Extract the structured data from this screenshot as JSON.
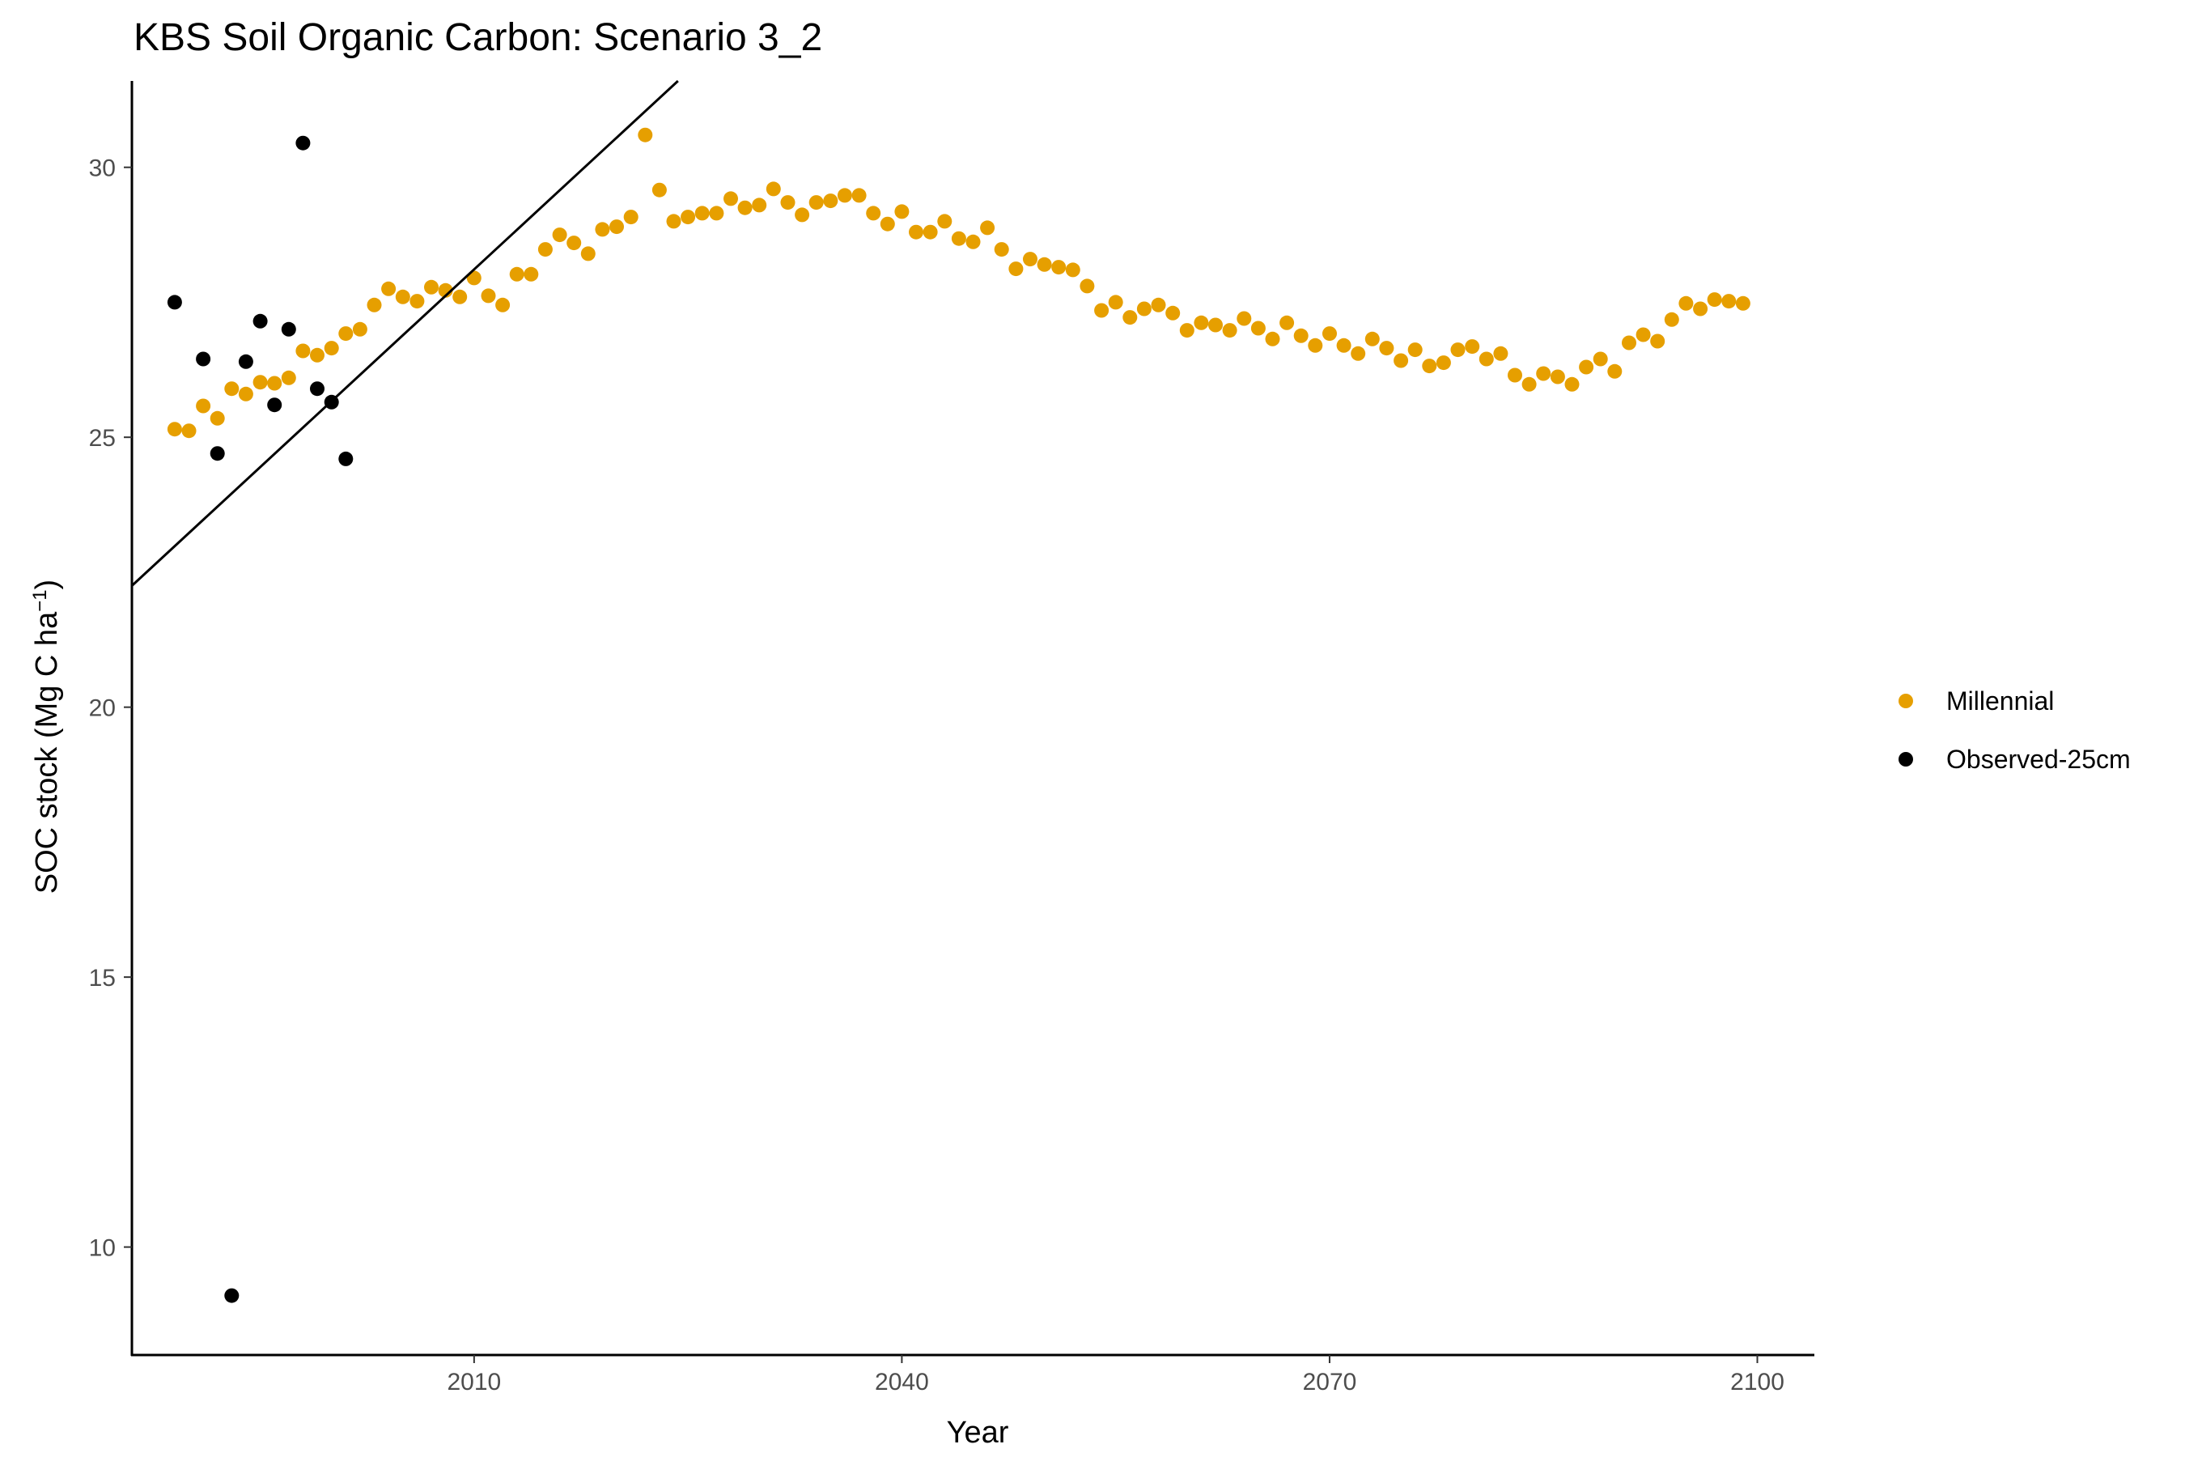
{
  "chart_data": {
    "type": "scatter",
    "title": "KBS Soil Organic Carbon: Scenario  3_2",
    "xlabel": "Year",
    "ylabel": "SOC stock (Mg C ha",
    "ylabel_superscript": "−1",
    "ylabel_close": ")",
    "xlim": [
      1986,
      2104
    ],
    "ylim": [
      8,
      31.6
    ],
    "x_ticks": [
      2010,
      2040,
      2070,
      2100
    ],
    "y_ticks": [
      10,
      15,
      20,
      25,
      30
    ],
    "grid": false,
    "legend_position": "right",
    "series": [
      {
        "name": "Millennial",
        "color": "#E69F00",
        "x": [
          1989,
          1990,
          1991,
          1992,
          1993,
          1994,
          1995,
          1996,
          1997,
          1998,
          1999,
          2000,
          2001,
          2002,
          2003,
          2004,
          2005,
          2006,
          2007,
          2008,
          2009,
          2010,
          2011,
          2012,
          2013,
          2014,
          2015,
          2016,
          2017,
          2018,
          2019,
          2020,
          2021,
          2022,
          2023,
          2024,
          2025,
          2026,
          2027,
          2028,
          2029,
          2030,
          2031,
          2032,
          2033,
          2034,
          2035,
          2036,
          2037,
          2038,
          2039,
          2040,
          2041,
          2042,
          2043,
          2044,
          2045,
          2046,
          2047,
          2048,
          2049,
          2050,
          2051,
          2052,
          2053,
          2054,
          2055,
          2056,
          2057,
          2058,
          2059,
          2060,
          2061,
          2062,
          2063,
          2064,
          2065,
          2066,
          2067,
          2068,
          2069,
          2070,
          2071,
          2072,
          2073,
          2074,
          2075,
          2076,
          2077,
          2078,
          2079,
          2080,
          2081,
          2082,
          2083,
          2084,
          2085,
          2086,
          2087,
          2088,
          2089,
          2090,
          2091,
          2092,
          2093,
          2094,
          2095,
          2096,
          2097,
          2098,
          2099
        ],
        "values": [
          25.15,
          25.12,
          25.58,
          25.35,
          25.9,
          25.8,
          26.02,
          26.0,
          26.1,
          26.6,
          26.52,
          26.65,
          26.92,
          27.0,
          27.45,
          27.75,
          27.6,
          27.52,
          27.78,
          27.72,
          27.6,
          27.95,
          27.62,
          27.45,
          28.02,
          28.02,
          28.48,
          28.75,
          28.6,
          28.4,
          28.85,
          28.9,
          29.08,
          30.6,
          29.58,
          29.0,
          29.08,
          29.15,
          29.15,
          29.42,
          29.25,
          29.3,
          29.6,
          29.35,
          29.12,
          29.35,
          29.38,
          29.48,
          29.48,
          29.15,
          28.95,
          29.18,
          28.8,
          28.8,
          29.0,
          28.68,
          28.62,
          28.88,
          28.48,
          28.12,
          28.3,
          28.2,
          28.15,
          28.1,
          27.8,
          27.35,
          27.5,
          27.22,
          27.38,
          27.45,
          27.3,
          26.98,
          27.12,
          27.08,
          26.98,
          27.2,
          27.02,
          26.82,
          27.12,
          26.88,
          26.7,
          26.92,
          26.7,
          26.55,
          26.82,
          26.65,
          26.42,
          26.62,
          26.32,
          26.38,
          26.62,
          26.68,
          26.45,
          26.55,
          26.15,
          25.98,
          26.18,
          26.12,
          25.98,
          26.3,
          26.45,
          26.22,
          26.75,
          26.9,
          26.78,
          27.18,
          27.48,
          27.38,
          27.55,
          27.52,
          27.48
        ]
      },
      {
        "name": "Observed-25cm",
        "color": "#000000",
        "x": [
          1989,
          1991,
          1992,
          1993,
          1994,
          1995,
          1996,
          1997,
          1998,
          1999,
          2000,
          2001
        ],
        "values": [
          27.5,
          26.45,
          24.7,
          9.1,
          26.4,
          27.15,
          25.6,
          27.0,
          30.45,
          25.9,
          25.65,
          24.6
        ]
      }
    ],
    "trend_line": {
      "color": "#000000",
      "x": [
        1986,
        2024.3
      ],
      "values": [
        22.25,
        31.6
      ]
    }
  }
}
